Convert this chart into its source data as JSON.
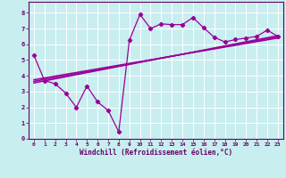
{
  "xlabel": "Windchill (Refroidissement éolien,°C)",
  "bg_color": "#c8eef0",
  "line_color": "#990099",
  "grid_color": "#ffffff",
  "xlim": [
    -0.5,
    23.5
  ],
  "ylim": [
    0,
    8.7
  ],
  "xticks": [
    0,
    1,
    2,
    3,
    4,
    5,
    6,
    7,
    8,
    9,
    10,
    11,
    12,
    13,
    14,
    15,
    16,
    17,
    18,
    19,
    20,
    21,
    22,
    23
  ],
  "yticks": [
    0,
    1,
    2,
    3,
    4,
    5,
    6,
    7,
    8
  ],
  "data_x": [
    0,
    1,
    2,
    3,
    4,
    5,
    6,
    7,
    8,
    9,
    10,
    11,
    12,
    13,
    14,
    15,
    16,
    17,
    18,
    19,
    20,
    21,
    22,
    23
  ],
  "data_y": [
    5.3,
    3.7,
    3.5,
    2.9,
    2.0,
    3.35,
    2.35,
    1.8,
    0.45,
    6.25,
    7.9,
    7.0,
    7.3,
    7.25,
    7.25,
    7.7,
    7.05,
    6.45,
    6.15,
    6.3,
    6.4,
    6.5,
    6.9,
    6.5
  ],
  "trend1_x": [
    0,
    23
  ],
  "trend1_y": [
    3.55,
    6.55
  ],
  "trend2_x": [
    0,
    23
  ],
  "trend2_y": [
    3.75,
    6.4
  ],
  "trend3_x": [
    0,
    23
  ],
  "trend3_y": [
    3.65,
    6.47
  ]
}
